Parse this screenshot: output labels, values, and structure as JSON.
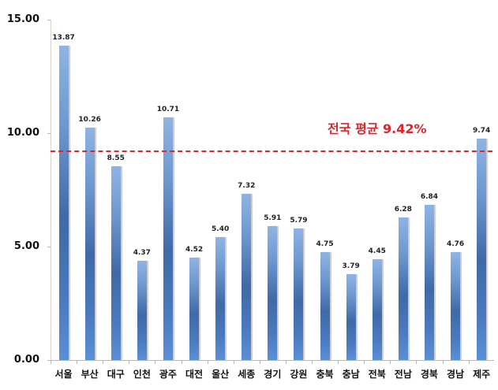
{
  "chart_data": {
    "type": "bar",
    "title": "",
    "xlabel": "",
    "ylabel": "",
    "ylim": [
      0,
      15
    ],
    "yticks": [
      "0.00",
      "5.00",
      "10.00",
      "15.00"
    ],
    "grid": false,
    "legend": null,
    "categories": [
      "서울",
      "부산",
      "대구",
      "인천",
      "광주",
      "대전",
      "울산",
      "세종",
      "경기",
      "강원",
      "충북",
      "충남",
      "전북",
      "전남",
      "경북",
      "경남",
      "제주"
    ],
    "values": [
      13.87,
      10.26,
      8.55,
      4.37,
      10.71,
      4.52,
      5.4,
      7.32,
      5.91,
      5.79,
      4.75,
      3.79,
      4.45,
      6.28,
      6.84,
      4.76,
      9.74
    ],
    "value_labels": [
      "13.87",
      "10.26",
      "8.55",
      "4.37",
      "10.71",
      "4.52",
      "5.40",
      "7.32",
      "5.91",
      "5.79",
      "4.75",
      "3.79",
      "4.45",
      "6.28",
      "6.84",
      "4.76",
      "9.74"
    ],
    "reference_line": {
      "value": 9.42,
      "label": "전국 평균 9.42%",
      "style": "dashed",
      "color": "#e0242b"
    },
    "bar_color": "#4a79bd"
  }
}
